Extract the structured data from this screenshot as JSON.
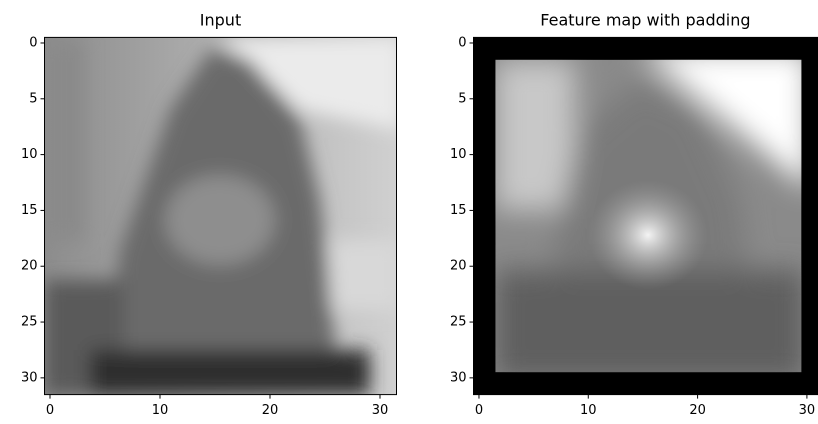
{
  "chart_data": [
    {
      "type": "image",
      "title": "Input",
      "xlim": [
        -0.5,
        31.5
      ],
      "ylim": [
        31.5,
        -0.5
      ],
      "xticks": [
        0,
        10,
        20,
        30
      ],
      "yticks": [
        0,
        5,
        10,
        15,
        20,
        25,
        30
      ]
    },
    {
      "type": "image",
      "title": "Feature map with padding",
      "xlim": [
        -0.5,
        31.5
      ],
      "ylim": [
        31.5,
        -0.5
      ],
      "xticks": [
        0,
        10,
        20,
        30
      ],
      "yticks": [
        0,
        5,
        10,
        15,
        20,
        25,
        30
      ]
    }
  ]
}
